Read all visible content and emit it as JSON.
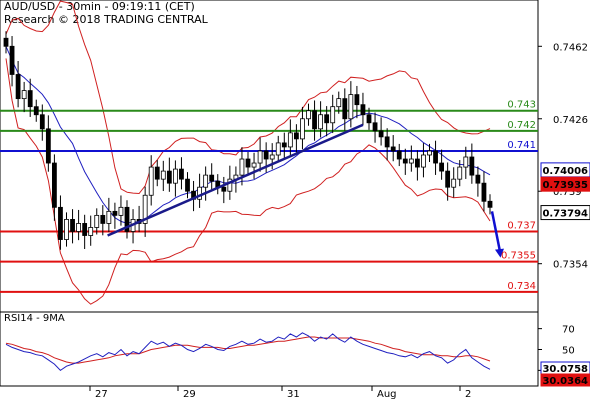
{
  "header": {
    "line1": "AUD/USD - 30min - 09:19:11 (CET)",
    "line2": "Research © 2018 TRADING CENTRAL"
  },
  "colors": {
    "support": "#e01010",
    "resistance": "#2a8a1a",
    "pivot": "#1010d0",
    "trendline": "#1a1a8a",
    "bollinger": "#d02020",
    "ma": "#2020c0",
    "candle": "#000000",
    "rsi_line": "#2020c0",
    "rsi_ma": "#d02020",
    "current_price_bg": "#000000",
    "red_tag_bg": "#e01010"
  },
  "chart_data": {
    "type": "candlestick",
    "instrument": "AUD/USD",
    "timeframe": "30min",
    "price_axis": {
      "ticks": [
        "0.7462",
        "0.7426",
        "0.739",
        "0.7354"
      ],
      "ylim": [
        0.733,
        0.7485
      ]
    },
    "x_labels": [
      "27",
      "29",
      "31",
      "Aug",
      "2"
    ],
    "levels": {
      "resistance": [
        0.743,
        0.742
      ],
      "pivot": 0.741,
      "support": [
        0.737,
        0.7355,
        0.734
      ]
    },
    "level_labels": {
      "r2": "0.743",
      "r1": "0.742",
      "pivot": "0.741",
      "s1": "0.737",
      "s2": "0.7355",
      "s3": "0.734"
    },
    "price_tags": [
      {
        "value": "0.74006",
        "style": "blue"
      },
      {
        "value": "0.73935",
        "style": "red"
      },
      {
        "value": "0.73794",
        "style": "black"
      }
    ],
    "closes": [
      0.7462,
      0.7448,
      0.7436,
      0.744,
      0.7432,
      0.7428,
      0.7421,
      0.7404,
      0.7382,
      0.7366,
      0.7376,
      0.737,
      0.7374,
      0.7368,
      0.7372,
      0.7378,
      0.7374,
      0.738,
      0.7378,
      0.7382,
      0.737,
      0.7376,
      0.7374,
      0.7388,
      0.7402,
      0.7396,
      0.74,
      0.7394,
      0.7401,
      0.7396,
      0.739,
      0.7386,
      0.7392,
      0.7398,
      0.7395,
      0.7392,
      0.739,
      0.7396,
      0.7398,
      0.7406,
      0.7402,
      0.7404,
      0.741,
      0.7406,
      0.7408,
      0.7414,
      0.7412,
      0.7419,
      0.7416,
      0.7426,
      0.743,
      0.7421,
      0.7428,
      0.7424,
      0.7432,
      0.7436,
      0.7426,
      0.7438,
      0.7433,
      0.7428,
      0.7424,
      0.742,
      0.7417,
      0.7412,
      0.741,
      0.7406,
      0.7404,
      0.7406,
      0.7402,
      0.7408,
      0.741,
      0.7404,
      0.74,
      0.7392,
      0.7396,
      0.7402,
      0.7407,
      0.7398,
      0.7394,
      0.7385,
      0.7382
    ],
    "trendline": {
      "from": [
        27.4,
        0.7368
      ],
      "to": [
        31.9,
        0.7423
      ]
    },
    "arrow": {
      "from_value": 0.738,
      "to_value": 0.7357
    },
    "rsi": {
      "title": "RSI14 - 9MA",
      "ticks": [
        "70",
        "50",
        "30"
      ],
      "ylim": [
        15,
        85
      ],
      "values": [
        55,
        52,
        50,
        48,
        47,
        45,
        44,
        40,
        36,
        30,
        34,
        36,
        38,
        41,
        44,
        46,
        43,
        47,
        45,
        50,
        44,
        48,
        46,
        52,
        58,
        55,
        57,
        53,
        56,
        54,
        50,
        48,
        51,
        55,
        53,
        50,
        49,
        53,
        55,
        58,
        55,
        56,
        60,
        57,
        58,
        62,
        60,
        65,
        62,
        66,
        63,
        58,
        62,
        60,
        65,
        60,
        57,
        62,
        58,
        55,
        53,
        51,
        49,
        47,
        46,
        44,
        43,
        45,
        42,
        46,
        48,
        44,
        42,
        37,
        40,
        46,
        50,
        42,
        38,
        34,
        31
      ],
      "ma_values": [
        56,
        55,
        53,
        51,
        50,
        48,
        47,
        45,
        42,
        40,
        38,
        37,
        37,
        38,
        39,
        40,
        41,
        42,
        44,
        45,
        46,
        46,
        46,
        48,
        50,
        51,
        52,
        53,
        54,
        54,
        54,
        53,
        52,
        52,
        52,
        52,
        51,
        51,
        52,
        53,
        54,
        54,
        55,
        56,
        57,
        58,
        58,
        59,
        60,
        61,
        62,
        62,
        61,
        61,
        61,
        61,
        61,
        61,
        60,
        59,
        58,
        56,
        55,
        53,
        51,
        50,
        48,
        47,
        46,
        45,
        45,
        45,
        44,
        44,
        43,
        43,
        44,
        44,
        43,
        41,
        39
      ]
    },
    "rsi_tags": [
      {
        "value": "30.0758",
        "style": "blue"
      },
      {
        "value": "30.0364",
        "style": "red"
      }
    ]
  }
}
